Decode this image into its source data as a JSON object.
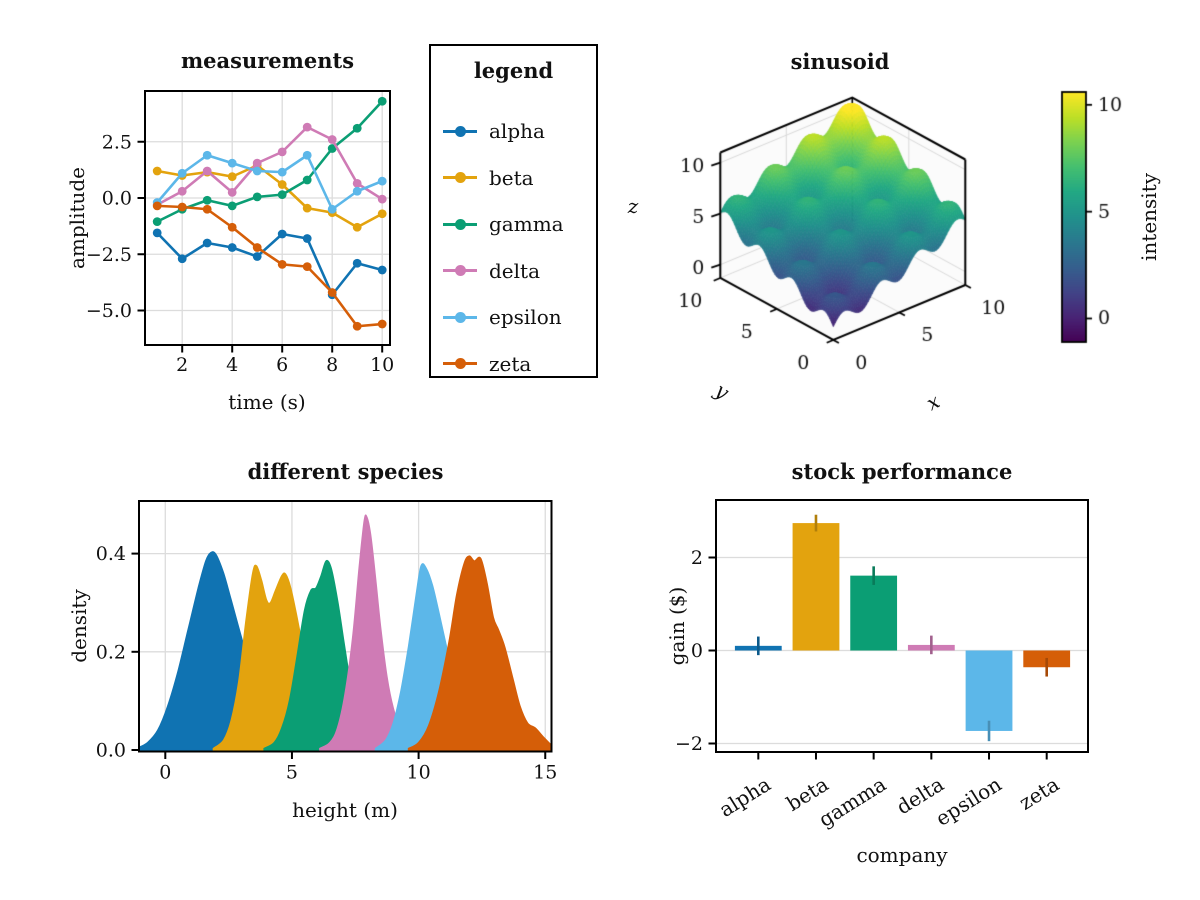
{
  "background": "#ffffff",
  "legend": {
    "title": "legend",
    "entries": [
      {
        "label": "alpha",
        "color": "#1073b2"
      },
      {
        "label": "beta",
        "color": "#e3a30e"
      },
      {
        "label": "gamma",
        "color": "#0b9e74"
      },
      {
        "label": "delta",
        "color": "#cf7bb5"
      },
      {
        "label": "epsilon",
        "color": "#5cb7e9"
      },
      {
        "label": "zeta",
        "color": "#d55e08"
      }
    ]
  },
  "chart_data": [
    {
      "id": "measurements",
      "type": "line",
      "title": "measurements",
      "xlabel": "time (s)",
      "ylabel": "amplitude",
      "x": [
        1,
        2,
        3,
        4,
        5,
        6,
        7,
        8,
        9,
        10
      ],
      "xtick_values": [
        2,
        4,
        6,
        8,
        10
      ],
      "xtick_labels": [
        "2",
        "4",
        "6",
        "8",
        "10"
      ],
      "ytick_values": [
        2.5,
        0,
        -2.5,
        -5
      ],
      "ytick_labels": [
        "2.5",
        "0.0",
        "−2.5",
        "−5.0"
      ],
      "xlim": [
        0.52,
        10.45
      ],
      "ylim": [
        -6.55,
        4.75
      ],
      "grid": true,
      "series": [
        {
          "name": "alpha",
          "color": "#1073b2",
          "values": [
            -1.55,
            -2.7,
            -2.0,
            -2.2,
            -2.6,
            -1.6,
            -1.8,
            -4.3,
            -2.9,
            -3.2
          ]
        },
        {
          "name": "beta",
          "color": "#e3a30e",
          "values": [
            1.2,
            1.0,
            1.15,
            0.95,
            1.45,
            0.6,
            -0.45,
            -0.65,
            -1.3,
            -0.7
          ]
        },
        {
          "name": "gamma",
          "color": "#0b9e74",
          "values": [
            -1.05,
            -0.5,
            -0.1,
            -0.35,
            0.05,
            0.15,
            0.8,
            2.2,
            3.1,
            4.3
          ]
        },
        {
          "name": "delta",
          "color": "#cf7bb5",
          "values": [
            -0.3,
            0.3,
            1.2,
            0.25,
            1.55,
            2.05,
            3.15,
            2.6,
            0.65,
            -0.05
          ]
        },
        {
          "name": "epsilon",
          "color": "#5cb7e9",
          "values": [
            -0.2,
            1.1,
            1.9,
            1.55,
            1.2,
            1.15,
            1.9,
            -0.5,
            0.3,
            0.75
          ]
        },
        {
          "name": "zeta",
          "color": "#d55e08",
          "values": [
            -0.35,
            -0.4,
            -0.5,
            -1.3,
            -2.2,
            -2.95,
            -3.05,
            -4.2,
            -5.7,
            -5.6
          ]
        }
      ]
    },
    {
      "id": "sinusoid",
      "type": "surface",
      "title": "sinusoid",
      "xlabel": "x",
      "ylabel": "y",
      "zlabel": "z",
      "x_range": [
        0,
        10
      ],
      "y_range": [
        0,
        10
      ],
      "z_box": [
        -1.3,
        11
      ],
      "z_function": "z = 0.51*(x+y) + 0.7*(sin(2.2*x) + sin(2.2*y))",
      "xtick_values": [
        0,
        5,
        10
      ],
      "xtick_labels": [
        "0",
        "5",
        "10"
      ],
      "ytick_values": [
        10,
        5,
        0
      ],
      "ytick_labels": [
        "10",
        "5",
        "0"
      ],
      "ztick_values": [
        0,
        5,
        10
      ],
      "ztick_labels": [
        "0",
        "5",
        "10"
      ],
      "colormap": "viridis",
      "colorbar": {
        "label": "intensity",
        "tick_values": [
          10,
          5,
          0
        ],
        "tick_labels": [
          "10",
          "5",
          "0"
        ],
        "vmin": -1.1,
        "vmax": 10.6
      }
    },
    {
      "id": "different-species",
      "type": "area",
      "title": "different species",
      "xlabel": "height (m)",
      "ylabel": "density",
      "xtick_values": [
        0,
        5,
        10,
        15
      ],
      "xtick_labels": [
        "0",
        "5",
        "10",
        "15"
      ],
      "ytick_values": [
        0,
        0.2,
        0.4
      ],
      "ytick_labels": [
        "0.0",
        "0.2",
        "0.4"
      ],
      "xlim": [
        -1.04,
        15.3
      ],
      "ylim": [
        0,
        0.507
      ],
      "grid": true,
      "curves": [
        {
          "color": "#1073b2",
          "points": [
            [
              -1.1,
              0.004
            ],
            [
              -0.7,
              0.015
            ],
            [
              -0.3,
              0.04
            ],
            [
              0.1,
              0.09
            ],
            [
              0.5,
              0.16
            ],
            [
              0.9,
              0.245
            ],
            [
              1.3,
              0.33
            ],
            [
              1.6,
              0.385
            ],
            [
              1.8,
              0.402
            ],
            [
              2.0,
              0.398
            ],
            [
              2.3,
              0.36
            ],
            [
              2.6,
              0.305
            ],
            [
              3.0,
              0.23
            ],
            [
              3.4,
              0.155
            ],
            [
              3.8,
              0.095
            ],
            [
              4.2,
              0.05
            ],
            [
              4.6,
              0.022
            ],
            [
              5.0,
              0.008
            ],
            [
              5.4,
              0.002
            ]
          ]
        },
        {
          "color": "#e3a30e",
          "points": [
            [
              1.9,
              0.003
            ],
            [
              2.3,
              0.02
            ],
            [
              2.6,
              0.06
            ],
            [
              2.9,
              0.14
            ],
            [
              3.2,
              0.27
            ],
            [
              3.45,
              0.36
            ],
            [
              3.6,
              0.375
            ],
            [
              3.8,
              0.345
            ],
            [
              4.0,
              0.305
            ],
            [
              4.15,
              0.3
            ],
            [
              4.35,
              0.325
            ],
            [
              4.6,
              0.355
            ],
            [
              4.75,
              0.358
            ],
            [
              4.95,
              0.33
            ],
            [
              5.2,
              0.27
            ],
            [
              5.5,
              0.19
            ],
            [
              5.8,
              0.12
            ],
            [
              6.1,
              0.065
            ],
            [
              6.5,
              0.025
            ],
            [
              6.9,
              0.008
            ],
            [
              7.3,
              0.002
            ]
          ]
        },
        {
          "color": "#0b9e74",
          "points": [
            [
              3.9,
              0.003
            ],
            [
              4.3,
              0.015
            ],
            [
              4.6,
              0.045
            ],
            [
              4.9,
              0.1
            ],
            [
              5.2,
              0.19
            ],
            [
              5.5,
              0.285
            ],
            [
              5.75,
              0.325
            ],
            [
              5.95,
              0.33
            ],
            [
              6.15,
              0.355
            ],
            [
              6.35,
              0.385
            ],
            [
              6.55,
              0.37
            ],
            [
              6.8,
              0.305
            ],
            [
              7.05,
              0.22
            ],
            [
              7.3,
              0.14
            ],
            [
              7.6,
              0.07
            ],
            [
              7.9,
              0.03
            ],
            [
              8.3,
              0.01
            ],
            [
              8.7,
              0.002
            ]
          ]
        },
        {
          "color": "#cf7bb5",
          "points": [
            [
              6.1,
              0.003
            ],
            [
              6.5,
              0.015
            ],
            [
              6.8,
              0.045
            ],
            [
              7.1,
              0.115
            ],
            [
              7.4,
              0.23
            ],
            [
              7.65,
              0.37
            ],
            [
              7.85,
              0.465
            ],
            [
              7.95,
              0.475
            ],
            [
              8.1,
              0.44
            ],
            [
              8.3,
              0.35
            ],
            [
              8.5,
              0.25
            ],
            [
              8.75,
              0.15
            ],
            [
              9.0,
              0.085
            ],
            [
              9.3,
              0.04
            ],
            [
              9.6,
              0.015
            ],
            [
              10.0,
              0.004
            ]
          ]
        },
        {
          "color": "#5cb7e9",
          "points": [
            [
              8.3,
              0.003
            ],
            [
              8.7,
              0.02
            ],
            [
              9.0,
              0.055
            ],
            [
              9.3,
              0.12
            ],
            [
              9.6,
              0.21
            ],
            [
              9.9,
              0.315
            ],
            [
              10.1,
              0.375
            ],
            [
              10.3,
              0.37
            ],
            [
              10.55,
              0.335
            ],
            [
              10.8,
              0.28
            ],
            [
              11.1,
              0.21
            ],
            [
              11.4,
              0.14
            ],
            [
              11.8,
              0.07
            ],
            [
              12.2,
              0.03
            ],
            [
              12.6,
              0.01
            ],
            [
              13.0,
              0.003
            ]
          ]
        },
        {
          "color": "#d55e08",
          "points": [
            [
              9.6,
              0.003
            ],
            [
              10.0,
              0.015
            ],
            [
              10.4,
              0.05
            ],
            [
              10.8,
              0.12
            ],
            [
              11.2,
              0.22
            ],
            [
              11.5,
              0.315
            ],
            [
              11.8,
              0.38
            ],
            [
              12.0,
              0.395
            ],
            [
              12.2,
              0.385
            ],
            [
              12.45,
              0.39
            ],
            [
              12.7,
              0.34
            ],
            [
              12.95,
              0.27
            ],
            [
              13.15,
              0.245
            ],
            [
              13.4,
              0.21
            ],
            [
              13.7,
              0.15
            ],
            [
              14.0,
              0.09
            ],
            [
              14.3,
              0.055
            ],
            [
              14.6,
              0.045
            ],
            [
              14.9,
              0.028
            ],
            [
              15.2,
              0.012
            ],
            [
              15.35,
              0.006
            ]
          ]
        }
      ]
    },
    {
      "id": "stock-performance",
      "type": "bar",
      "title": "stock performance",
      "xlabel": "company",
      "ylabel": "gain ($)",
      "categories": [
        "alpha",
        "beta",
        "gamma",
        "delta",
        "epsilon",
        "zeta"
      ],
      "values": [
        0.1,
        2.74,
        1.61,
        0.12,
        -1.73,
        -0.36
      ],
      "errors": [
        0.2,
        0.18,
        0.2,
        0.2,
        0.22,
        0.2
      ],
      "colors": [
        "#1073b2",
        "#e3a30e",
        "#0b9e74",
        "#cf7bb5",
        "#5cb7e9",
        "#d55e08"
      ],
      "ytick_values": [
        2,
        0,
        -2
      ],
      "ytick_labels": [
        "2",
        "0",
        "−2"
      ],
      "ylim": [
        -2.19,
        3.22
      ],
      "grid": true
    }
  ]
}
